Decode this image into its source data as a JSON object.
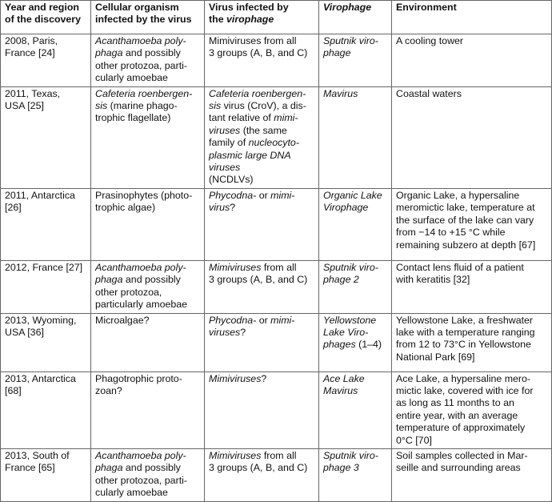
{
  "table": {
    "header": [
      [
        "Year and region",
        "of the discovery"
      ],
      [
        "Cellular organism",
        "infected by the virus"
      ],
      [
        "Virus infected by",
        [
          "the ",
          {
            "text": "virophage",
            "italic": true
          }
        ]
      ],
      [
        [
          {
            "text": "Virophage",
            "italic": true
          }
        ]
      ],
      [
        "Environment"
      ]
    ],
    "rows": [
      [
        [
          "2008, Paris,",
          "France [24]"
        ],
        [
          [
            {
              "text": "Acanthamoeba poly-",
              "italic": true
            }
          ],
          [
            {
              "text": "phaga",
              "italic": true
            },
            " and possibly"
          ],
          "other protozoa, parti-",
          "cularly amoebae"
        ],
        [
          "Mimiviruses from all",
          "3 groups (A, B, and C)"
        ],
        [
          [
            {
              "text": "Sputnik viro-",
              "italic": true
            }
          ],
          [
            {
              "text": "phage",
              "italic": true
            }
          ]
        ],
        [
          "A cooling tower"
        ]
      ],
      [
        [
          "2011, Texas,",
          "USA [25]"
        ],
        [
          [
            {
              "text": "Cafeteria roenbergen-",
              "italic": true
            }
          ],
          [
            {
              "text": "sis",
              "italic": true
            },
            " (marine phago-"
          ],
          "trophic flagellate)"
        ],
        [
          [
            {
              "text": "Cafeteria roenbergen-",
              "italic": true
            }
          ],
          [
            {
              "text": "sis",
              "italic": true
            },
            " virus (CroV), a dis-"
          ],
          [
            "tant relative of ",
            {
              "text": "mimi-",
              "italic": true
            }
          ],
          [
            {
              "text": "viruses",
              "italic": true
            },
            " (the same"
          ],
          [
            "family of ",
            {
              "text": "nucleocyto-",
              "italic": true
            }
          ],
          [
            {
              "text": "plasmic large DNA",
              "italic": true
            }
          ],
          [
            {
              "text": "viruses",
              "italic": true
            }
          ],
          "(NCDLVs)"
        ],
        [
          [
            {
              "text": "Mavirus",
              "italic": true
            }
          ]
        ],
        [
          "Coastal waters"
        ]
      ],
      [
        [
          "2011, Antarctica",
          "[26]"
        ],
        [
          "Prasinophytes (photo-",
          "trophic algae)"
        ],
        [
          [
            {
              "text": "Phycodna-",
              "italic": true
            },
            " or ",
            {
              "text": "mimi-",
              "italic": true
            }
          ],
          [
            {
              "text": "virus",
              "italic": true
            },
            "?"
          ]
        ],
        [
          [
            {
              "text": "Organic Lake",
              "italic": true
            }
          ],
          [
            {
              "text": "Virophage",
              "italic": true
            }
          ]
        ],
        [
          "Organic Lake, a hypersaline",
          "meromictic lake, temperature at",
          "the surface of the lake can vary",
          "from −14 to +15 °C while",
          "remaining subzero at depth [67]"
        ]
      ],
      [
        [
          "2012, France [27]"
        ],
        [
          [
            {
              "text": "Acanthamoeba poly-",
              "italic": true
            }
          ],
          [
            {
              "text": "phaga",
              "italic": true
            },
            " and possibly"
          ],
          "other protozoa,",
          "particularly amoebae"
        ],
        [
          [
            {
              "text": "Mimiviruses",
              "italic": true
            },
            " from all"
          ],
          "3 groups (A, B, and C)"
        ],
        [
          [
            {
              "text": "Sputnik viro-",
              "italic": true
            }
          ],
          [
            {
              "text": "phage 2",
              "italic": true
            }
          ]
        ],
        [
          "Contact lens fluid of a patient",
          "with keratitis [32]"
        ]
      ],
      [
        [
          "2013, Wyoming,",
          "USA [36]"
        ],
        [
          "Microalgae?"
        ],
        [
          [
            {
              "text": "Phycodna-",
              "italic": true
            },
            " or ",
            {
              "text": "mimi-",
              "italic": true
            }
          ],
          [
            {
              "text": "viruses",
              "italic": true
            },
            "?"
          ]
        ],
        [
          [
            {
              "text": "Yellowstone",
              "italic": true
            }
          ],
          [
            {
              "text": "Lake Viro-",
              "italic": true
            }
          ],
          [
            {
              "text": "phages",
              "italic": true
            },
            " (1–4)"
          ]
        ],
        [
          "Yellowstone Lake, a freshwater",
          "lake with a temperature ranging",
          "from 12 to 73°C in Yellowstone",
          "National Park [69]"
        ]
      ],
      [
        [
          "2013, Antarctica",
          "[68]"
        ],
        [
          "Phagotrophic proto-",
          "zoan?"
        ],
        [
          [
            {
              "text": "Mimiviruses",
              "italic": true
            },
            "?"
          ]
        ],
        [
          [
            {
              "text": "Ace Lake",
              "italic": true
            }
          ],
          [
            {
              "text": "Mavirus",
              "italic": true
            }
          ]
        ],
        [
          "Ace Lake, a hypersaline mero-",
          "mictic lake, covered with ice for",
          "as long as 11 months to an",
          "entire year, with an average",
          "temperature of approximately",
          "0°C [70]"
        ]
      ],
      [
        [
          "2013, South of",
          "France [65]"
        ],
        [
          [
            {
              "text": "Acanthamoeba poly-",
              "italic": true
            }
          ],
          [
            {
              "text": "phaga",
              "italic": true
            },
            " and possibly"
          ],
          "other protozoa, parti-",
          "cularly amoebae"
        ],
        [
          [
            {
              "text": "Mimiviruses",
              "italic": true
            },
            " from all"
          ],
          "3 groups (A, B, and C)"
        ],
        [
          [
            {
              "text": "Sputnik viro-",
              "italic": true
            }
          ],
          [
            {
              "text": "phage 3",
              "italic": true
            }
          ]
        ],
        [
          "Soil samples collected in Mar-",
          "seille and surrounding areas"
        ]
      ]
    ]
  }
}
